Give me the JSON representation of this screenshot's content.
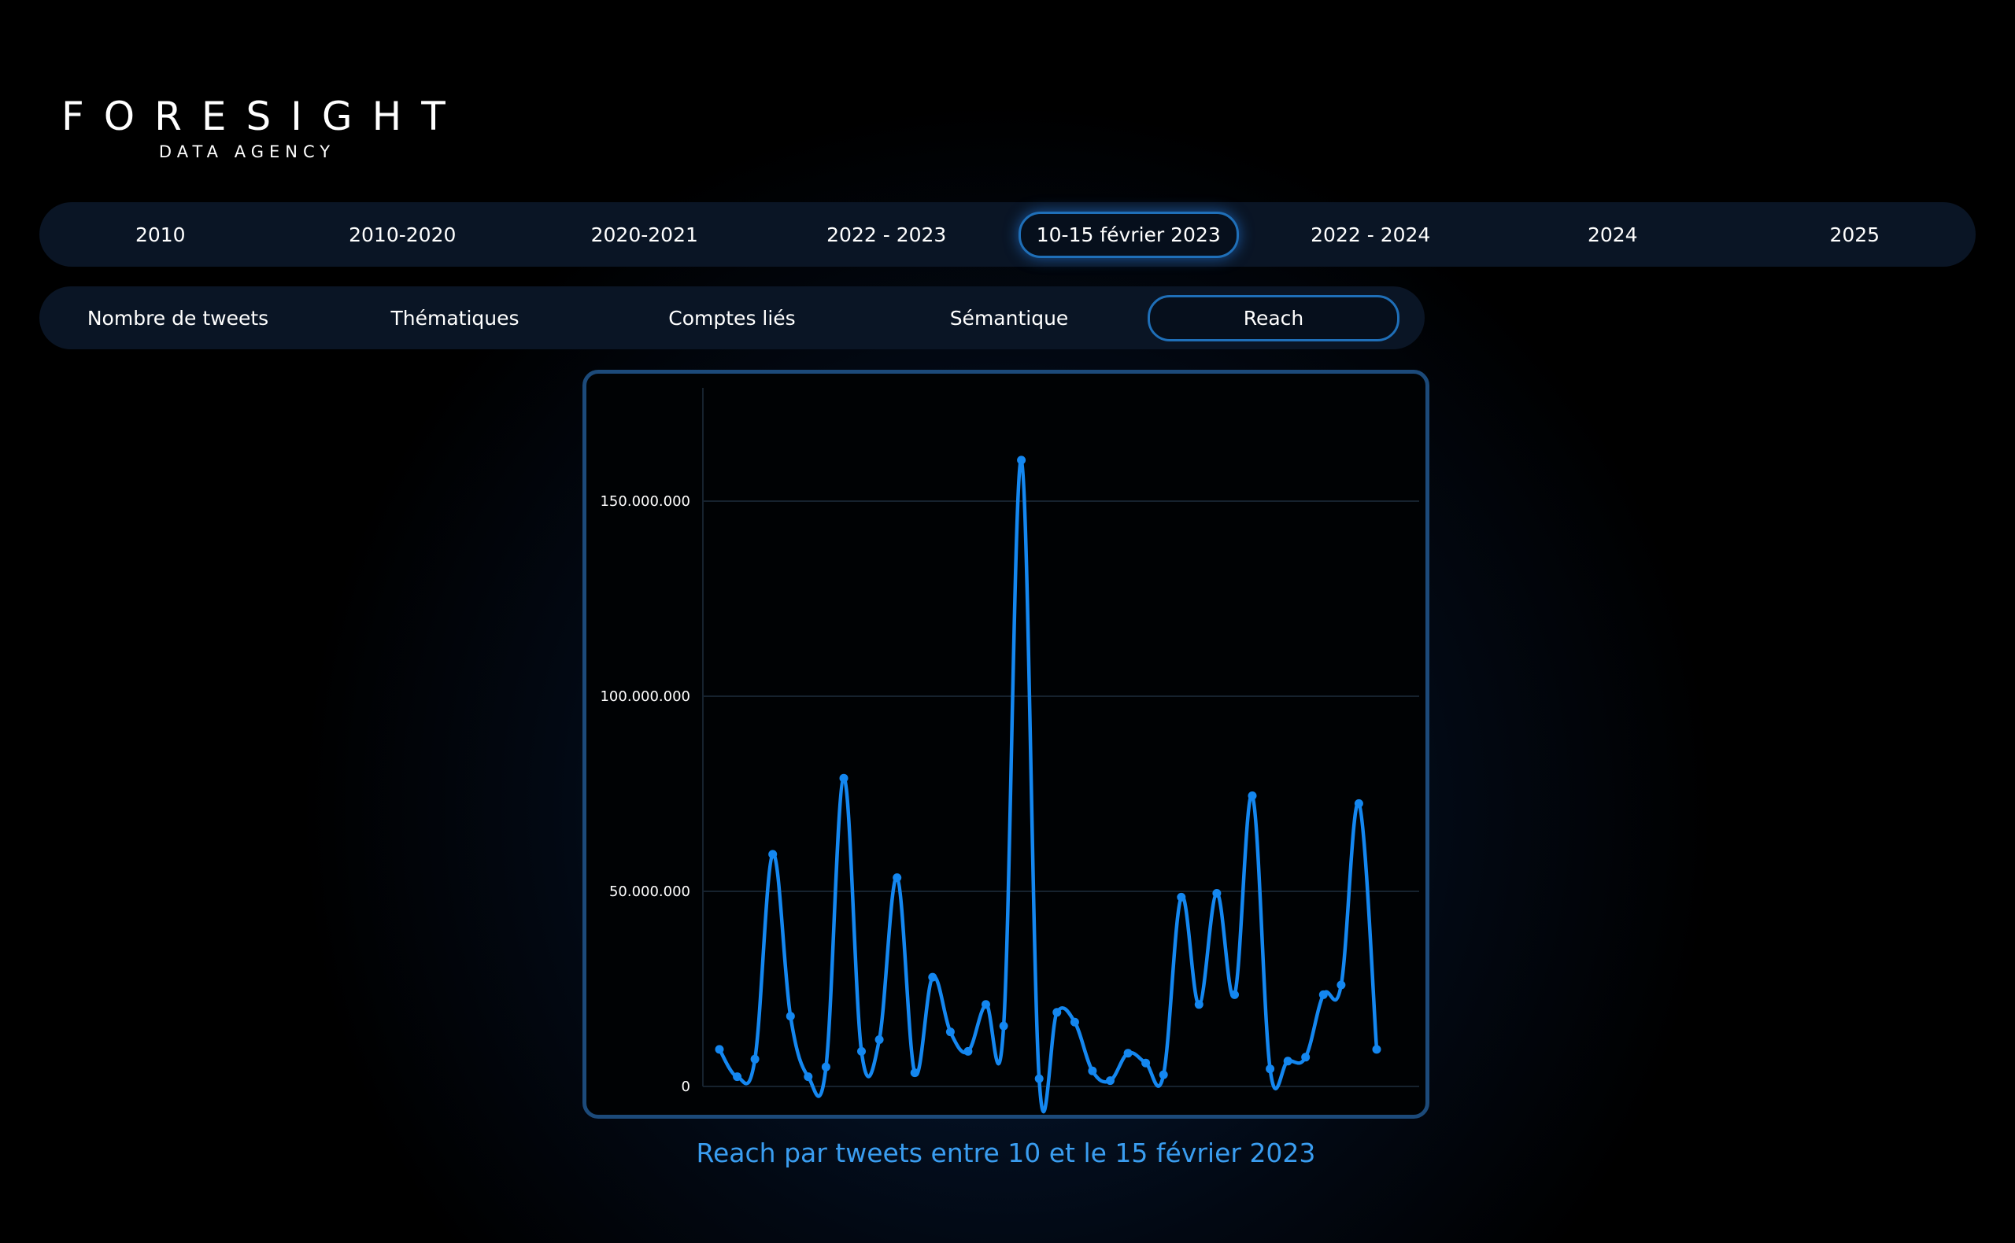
{
  "brand": {
    "name": "FORESIGHT",
    "tagline": "DATA AGENCY"
  },
  "year_tabs": [
    {
      "label": "2010",
      "active": false
    },
    {
      "label": "2010-2020",
      "active": false
    },
    {
      "label": "2020-2021",
      "active": false
    },
    {
      "label": "2022 - 2023",
      "active": false
    },
    {
      "label": "10-15 février 2023",
      "active": true
    },
    {
      "label": "2022 - 2024",
      "active": false
    },
    {
      "label": "2024",
      "active": false
    },
    {
      "label": "2025",
      "active": false
    }
  ],
  "metric_tabs": [
    {
      "label": "Nombre de tweets",
      "active": false
    },
    {
      "label": "Thématiques",
      "active": false
    },
    {
      "label": "Comptes liés",
      "active": false
    },
    {
      "label": "Sémantique",
      "active": false
    },
    {
      "label": "Reach",
      "active": true
    }
  ],
  "colors": {
    "accent": "#1487f0",
    "active_border": "#1f6fb8",
    "caption": "#3a9df0",
    "chart_border": "#1c4a7a"
  },
  "chart_data": {
    "type": "line",
    "title": "",
    "caption": "Reach par tweets entre 10 et le 15 février 2023",
    "xlabel": "",
    "ylabel": "",
    "ylim": [
      0,
      180000000
    ],
    "grid": true,
    "legend": "none",
    "y_ticks": [
      {
        "value": 0,
        "label": "0"
      },
      {
        "value": 50000000,
        "label": "50.000.000"
      },
      {
        "value": 100000000,
        "label": "100.000.000"
      },
      {
        "value": 150000000,
        "label": "150.000.000"
      }
    ],
    "series": [
      {
        "values": [
          9500000,
          2500000,
          7000000,
          59500000,
          18000000,
          2500000,
          5000000,
          79000000,
          9000000,
          12000000,
          53500000,
          3500000,
          28000000,
          14000000,
          9000000,
          21000000,
          15500000,
          160500000,
          2000000,
          19000000,
          16500000,
          4000000,
          1500000,
          8500000,
          6000000,
          3000000,
          48500000,
          21000000,
          49500000,
          23500000,
          74500000,
          4500000,
          6500000,
          7500000,
          23500000,
          26000000,
          72500000,
          9500000
        ]
      }
    ]
  }
}
